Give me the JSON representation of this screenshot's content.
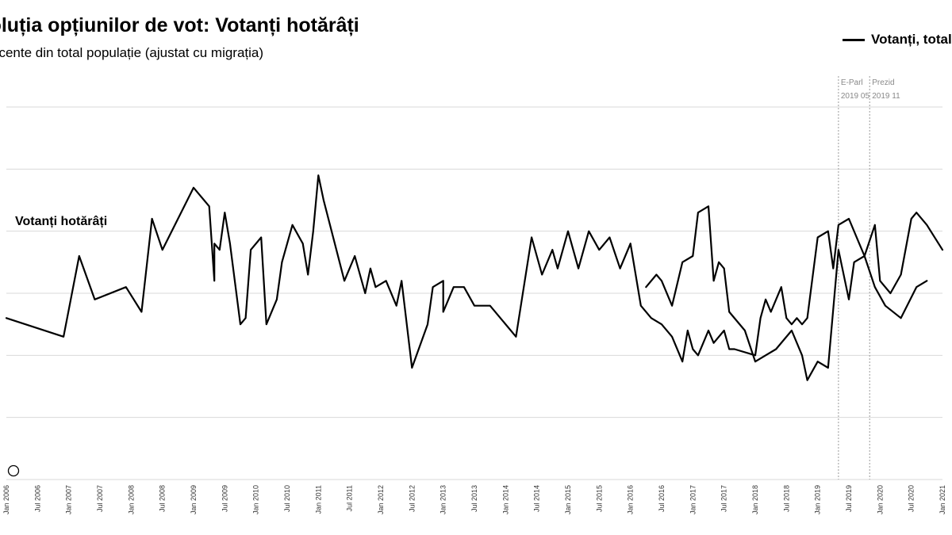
{
  "chart_data": {
    "type": "line",
    "title": "Evoluția opțiunilor de vot: Votanți hotărâți",
    "subtitle": "Procente din total populație (ajustat cu migrația)",
    "legend": {
      "position": "top-right",
      "entries": [
        "Votanți, total"
      ]
    },
    "series_label": "Votanți hotărâți",
    "grid": true,
    "xlim": [
      "2006-01",
      "2021-01"
    ],
    "ylim": [
      0,
      6
    ],
    "x_ticks": [
      "Jan 2006",
      "Jul 2006",
      "Jan 2007",
      "Jul 2007",
      "Jan 2008",
      "Jul 2008",
      "Jan 2009",
      "Jul 2009",
      "Jan 2010",
      "Jul 2010",
      "Jan 2011",
      "Jul 2011",
      "Jan 2012",
      "Jul 2012",
      "Jan 2013",
      "Jul 2013",
      "Jan 2014",
      "Jul 2014",
      "Jan 2015",
      "Jul 2015",
      "Jan 2016",
      "Jul 2016",
      "Jan 2017",
      "Jul 2017",
      "Jan 2018",
      "Jul 2018",
      "Jan 2019",
      "Jul 2019",
      "Jan 2020",
      "Jul 2020",
      "Jan 2021"
    ],
    "annotations": [
      {
        "x": "2019-05",
        "name": "E-Parl",
        "date": "2019 05"
      },
      {
        "x": "2019-11",
        "name": "Prezid",
        "date": "2019 11"
      }
    ],
    "series": [
      {
        "name": "Votanți, total",
        "color": "#000000",
        "segments": [
          [
            [
              "2006-01",
              2.6
            ],
            [
              "2006-12",
              2.3
            ],
            [
              "2007-03",
              3.6
            ],
            [
              "2007-06",
              2.9
            ],
            [
              "2007-12",
              3.1
            ],
            [
              "2008-03",
              2.7
            ],
            [
              "2008-05",
              4.2
            ],
            [
              "2008-07",
              3.7
            ],
            [
              "2009-01",
              4.7
            ],
            [
              "2009-04",
              4.4
            ],
            [
              "2009-05",
              3.2
            ],
            [
              "2009-05",
              3.8
            ],
            [
              "2009-06",
              3.7
            ],
            [
              "2009-07",
              4.3
            ],
            [
              "2009-08",
              3.8
            ],
            [
              "2009-10",
              2.5
            ],
            [
              "2009-11",
              2.6
            ],
            [
              "2009-12",
              3.7
            ],
            [
              "2010-02",
              3.9
            ],
            [
              "2010-03",
              2.5
            ],
            [
              "2010-05",
              2.9
            ],
            [
              "2010-06",
              3.5
            ],
            [
              "2010-08",
              4.1
            ],
            [
              "2010-10",
              3.8
            ],
            [
              "2010-11",
              3.3
            ],
            [
              "2010-12",
              4.0
            ],
            [
              "2011-01",
              4.9
            ],
            [
              "2011-02",
              4.5
            ],
            [
              "2011-06",
              3.2
            ],
            [
              "2011-08",
              3.6
            ],
            [
              "2011-10",
              3.0
            ],
            [
              "2011-11",
              3.4
            ],
            [
              "2011-12",
              3.1
            ],
            [
              "2012-02",
              3.2
            ],
            [
              "2012-04",
              2.8
            ],
            [
              "2012-05",
              3.2
            ],
            [
              "2012-07",
              1.8
            ],
            [
              "2012-10",
              2.5
            ],
            [
              "2012-11",
              3.1
            ],
            [
              "2013-01",
              3.2
            ],
            [
              "2013-01",
              2.7
            ],
            [
              "2013-03",
              3.1
            ],
            [
              "2013-05",
              3.1
            ],
            [
              "2013-07",
              2.8
            ],
            [
              "2013-10",
              2.8
            ],
            [
              "2014-03",
              2.3
            ],
            [
              "2014-06",
              3.9
            ],
            [
              "2014-08",
              3.3
            ],
            [
              "2014-10",
              3.7
            ],
            [
              "2014-11",
              3.4
            ],
            [
              "2015-01",
              4.0
            ],
            [
              "2015-03",
              3.4
            ],
            [
              "2015-05",
              4.0
            ],
            [
              "2015-07",
              3.7
            ],
            [
              "2015-09",
              3.9
            ],
            [
              "2015-11",
              3.4
            ],
            [
              "2016-01",
              3.8
            ],
            [
              "2016-03",
              2.8
            ],
            [
              "2016-05",
              2.6
            ],
            [
              "2016-07",
              2.5
            ],
            [
              "2016-09",
              2.3
            ],
            [
              "2016-11",
              1.9
            ],
            [
              "2016-12",
              2.4
            ],
            [
              "2017-01",
              2.1
            ],
            [
              "2017-02",
              2.0
            ],
            [
              "2017-04",
              2.4
            ],
            [
              "2017-05",
              2.2
            ],
            [
              "2017-07",
              2.4
            ],
            [
              "2017-08",
              2.1
            ],
            [
              "2017-09",
              2.1
            ],
            [
              "2018-01",
              2.0
            ],
            [
              "2018-02",
              2.6
            ],
            [
              "2018-03",
              2.9
            ],
            [
              "2018-04",
              2.7
            ],
            [
              "2018-06",
              3.1
            ],
            [
              "2018-07",
              2.6
            ],
            [
              "2018-08",
              2.5
            ],
            [
              "2018-09",
              2.6
            ],
            [
              "2018-10",
              2.5
            ],
            [
              "2018-11",
              2.6
            ],
            [
              "2019-01",
              3.9
            ],
            [
              "2019-03",
              4.0
            ],
            [
              "2019-04",
              3.4
            ],
            [
              "2019-05",
              4.1
            ],
            [
              "2019-07",
              4.2
            ],
            [
              "2019-09",
              3.8
            ],
            [
              "2019-10",
              3.6
            ],
            [
              "2019-12",
              3.1
            ],
            [
              "2020-02",
              2.8
            ],
            [
              "2020-05",
              2.6
            ],
            [
              "2020-08",
              3.1
            ],
            [
              "2020-10",
              3.2
            ]
          ],
          [
            [
              "2016-04",
              3.1
            ],
            [
              "2016-06",
              3.3
            ],
            [
              "2016-07",
              3.2
            ],
            [
              "2016-09",
              2.8
            ],
            [
              "2016-11",
              3.5
            ],
            [
              "2017-01",
              3.6
            ],
            [
              "2017-02",
              4.3
            ],
            [
              "2017-04",
              4.4
            ],
            [
              "2017-05",
              3.2
            ],
            [
              "2017-06",
              3.5
            ],
            [
              "2017-07",
              3.4
            ],
            [
              "2017-08",
              2.7
            ],
            [
              "2017-11",
              2.4
            ],
            [
              "2018-01",
              1.9
            ],
            [
              "2018-03",
              2.0
            ],
            [
              "2018-05",
              2.1
            ],
            [
              "2018-08",
              2.4
            ],
            [
              "2018-10",
              2.0
            ],
            [
              "2018-11",
              1.6
            ],
            [
              "2019-01",
              1.9
            ],
            [
              "2019-03",
              1.8
            ],
            [
              "2019-05",
              3.7
            ],
            [
              "2019-07",
              2.9
            ],
            [
              "2019-08",
              3.5
            ],
            [
              "2019-10",
              3.6
            ],
            [
              "2019-12",
              4.1
            ],
            [
              "2020-01",
              3.2
            ],
            [
              "2020-03",
              3.0
            ],
            [
              "2020-05",
              3.3
            ],
            [
              "2020-07",
              4.2
            ],
            [
              "2020-08",
              4.3
            ],
            [
              "2020-10",
              4.1
            ],
            [
              "2021-01",
              3.7
            ]
          ]
        ]
      }
    ]
  }
}
